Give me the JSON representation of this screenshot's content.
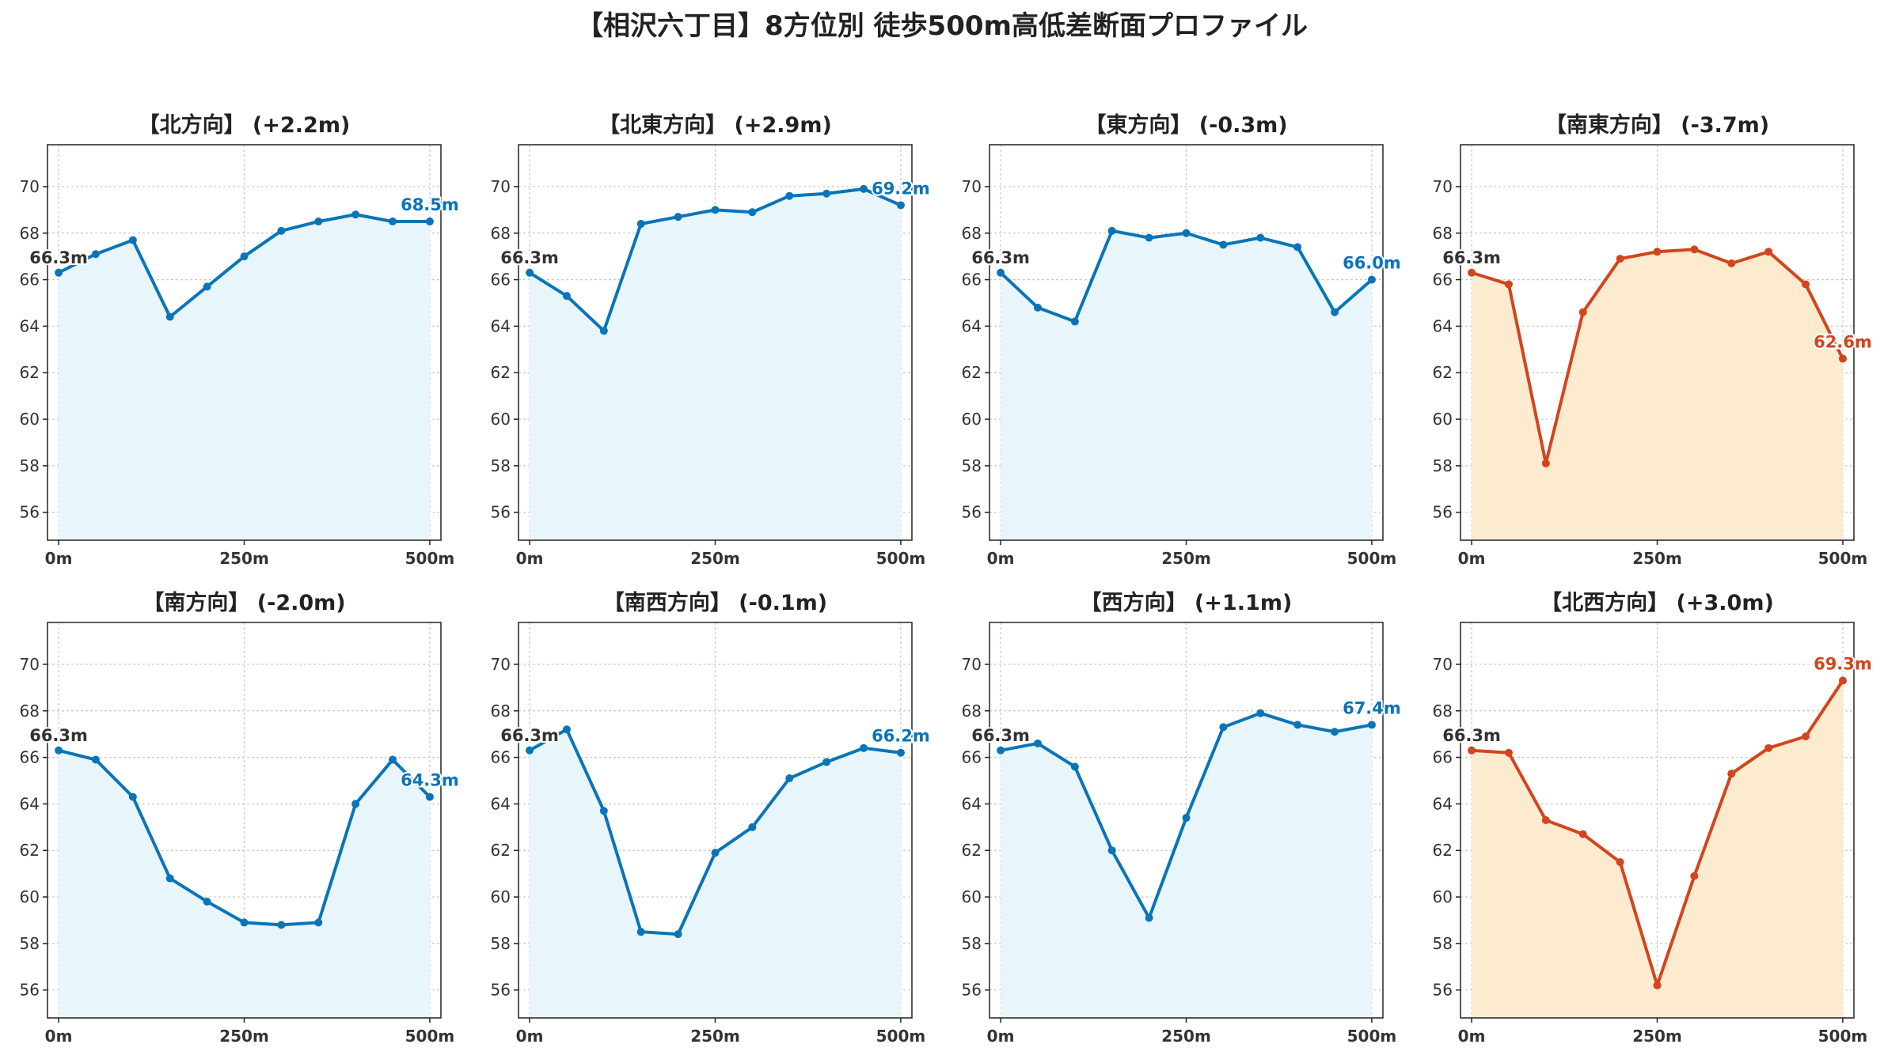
{
  "chart_data": {
    "type": "line",
    "title": "【相沢六丁目】8方位別 徒歩500m高低差断面プロファイル",
    "x": [
      0,
      50,
      100,
      150,
      200,
      250,
      300,
      350,
      400,
      450,
      500
    ],
    "x_ticks": [
      0,
      250,
      500
    ],
    "x_tick_labels": [
      "0m",
      "250m",
      "500m"
    ],
    "y_ticks": [
      56,
      58,
      60,
      62,
      64,
      66,
      68,
      70
    ],
    "ylim": [
      54.8,
      71.8
    ],
    "xlim": [
      -15,
      515
    ],
    "grid": true,
    "colors": {
      "up_line": "#0a74b8",
      "up_fill": "#e8f6fc",
      "down_line": "#d2451d",
      "down_fill": "#fdebd0",
      "start_label": "#333333"
    },
    "panels": [
      {
        "title": "【北方向】 (+2.2m)",
        "kind": "up",
        "start_label": "66.3m",
        "end_label": "68.5m",
        "values": [
          66.3,
          67.1,
          67.7,
          64.4,
          65.7,
          67.0,
          68.1,
          68.5,
          68.8,
          68.5,
          68.5
        ]
      },
      {
        "title": "【北東方向】 (+2.9m)",
        "kind": "up",
        "start_label": "66.3m",
        "end_label": "69.2m",
        "values": [
          66.3,
          65.3,
          63.8,
          68.4,
          68.7,
          69.0,
          68.9,
          69.6,
          69.7,
          69.9,
          69.2
        ]
      },
      {
        "title": "【東方向】 (-0.3m)",
        "kind": "up",
        "start_label": "66.3m",
        "end_label": "66.0m",
        "values": [
          66.3,
          64.8,
          64.2,
          68.1,
          67.8,
          68.0,
          67.5,
          67.8,
          67.4,
          64.6,
          66.0
        ]
      },
      {
        "title": "【南東方向】 (-3.7m)",
        "kind": "down",
        "start_label": "66.3m",
        "end_label": "62.6m",
        "values": [
          66.3,
          65.8,
          58.1,
          64.6,
          66.9,
          67.2,
          67.3,
          66.7,
          67.2,
          65.8,
          62.6
        ]
      },
      {
        "title": "【南方向】 (-2.0m)",
        "kind": "up",
        "start_label": "66.3m",
        "end_label": "64.3m",
        "values": [
          66.3,
          65.9,
          64.3,
          60.8,
          59.8,
          58.9,
          58.8,
          58.9,
          64.0,
          65.9,
          64.3
        ]
      },
      {
        "title": "【南西方向】 (-0.1m)",
        "kind": "up",
        "start_label": "66.3m",
        "end_label": "66.2m",
        "values": [
          66.3,
          67.2,
          63.7,
          58.5,
          58.4,
          61.9,
          63.0,
          65.1,
          65.8,
          66.4,
          66.2
        ]
      },
      {
        "title": "【西方向】 (+1.1m)",
        "kind": "up",
        "start_label": "66.3m",
        "end_label": "67.4m",
        "values": [
          66.3,
          66.6,
          65.6,
          62.0,
          59.1,
          63.4,
          67.3,
          67.9,
          67.4,
          67.1,
          67.4
        ]
      },
      {
        "title": "【北西方向】 (+3.0m)",
        "kind": "down",
        "start_label": "66.3m",
        "end_label": "69.3m",
        "values": [
          66.3,
          66.2,
          63.3,
          62.7,
          61.5,
          56.2,
          60.9,
          65.3,
          66.4,
          66.9,
          69.3
        ]
      }
    ]
  }
}
